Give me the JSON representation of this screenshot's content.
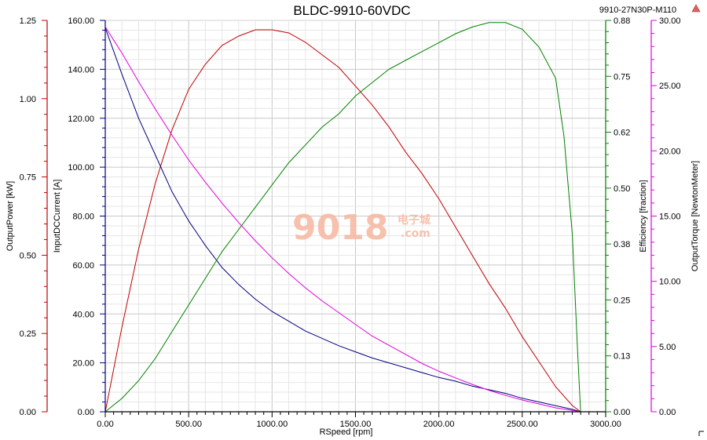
{
  "chart_data": {
    "type": "line",
    "title": "BLDC-9910-60VDC",
    "subtitle": "9910-27N30P-M110",
    "watermark": {
      "main": "9018",
      "cn": "电子城",
      "com": ".com"
    },
    "x_axis": {
      "label": "RSpeed [rpm]",
      "range": [
        0,
        3000
      ],
      "ticks": [
        "0.00",
        "500.00",
        "1000.00",
        "1500.00",
        "2000.00",
        "2500.00",
        "3000.00"
      ]
    },
    "y_axes": [
      {
        "id": "power",
        "label": "OutputPower [kW]",
        "color": "#c00000",
        "range": [
          0,
          1.25
        ],
        "ticks": [
          "0.00",
          "0.25",
          "0.50",
          "0.75",
          "1.00",
          "1.25"
        ]
      },
      {
        "id": "current",
        "label": "InputDCCurrent [A]",
        "color": "#000080",
        "range": [
          0,
          160
        ],
        "ticks": [
          "0.00",
          "20.00",
          "40.00",
          "60.00",
          "80.00",
          "100.00",
          "120.00",
          "140.00",
          "160.00"
        ]
      },
      {
        "id": "efficiency",
        "label": "Efficiency [fraction]",
        "color": "#008000",
        "range": [
          0,
          0.88
        ],
        "ticks": [
          "0.00",
          "0.13",
          "0.25",
          "0.38",
          "0.50",
          "0.62",
          "0.75",
          "0.88"
        ]
      },
      {
        "id": "torque",
        "label": "OutputTorque [NewtonMeter]",
        "color": "#e000e0",
        "range": [
          0,
          30
        ],
        "ticks": [
          "0.00",
          "5.00",
          "10.00",
          "15.00",
          "20.00",
          "25.00",
          "30.00"
        ]
      }
    ],
    "grid": true,
    "series": [
      {
        "axis": "power",
        "color": "#c00000",
        "points": [
          [
            0,
            0
          ],
          [
            100,
            0.27
          ],
          [
            200,
            0.52
          ],
          [
            300,
            0.73
          ],
          [
            400,
            0.9
          ],
          [
            500,
            1.03
          ],
          [
            600,
            1.11
          ],
          [
            700,
            1.17
          ],
          [
            800,
            1.2
          ],
          [
            900,
            1.22
          ],
          [
            1000,
            1.22
          ],
          [
            1100,
            1.21
          ],
          [
            1200,
            1.18
          ],
          [
            1300,
            1.14
          ],
          [
            1400,
            1.1
          ],
          [
            1500,
            1.04
          ],
          [
            1600,
            0.98
          ],
          [
            1700,
            0.91
          ],
          [
            1800,
            0.83
          ],
          [
            1900,
            0.76
          ],
          [
            2000,
            0.68
          ],
          [
            2100,
            0.59
          ],
          [
            2200,
            0.5
          ],
          [
            2300,
            0.41
          ],
          [
            2400,
            0.33
          ],
          [
            2500,
            0.24
          ],
          [
            2600,
            0.16
          ],
          [
            2700,
            0.08
          ],
          [
            2800,
            0.02
          ],
          [
            2850,
            0
          ]
        ]
      },
      {
        "axis": "current",
        "color": "#000080",
        "points": [
          [
            0,
            157
          ],
          [
            100,
            138
          ],
          [
            200,
            120
          ],
          [
            300,
            105
          ],
          [
            400,
            90
          ],
          [
            500,
            78
          ],
          [
            600,
            68
          ],
          [
            700,
            59
          ],
          [
            800,
            52
          ],
          [
            900,
            46
          ],
          [
            1000,
            41
          ],
          [
            1100,
            37
          ],
          [
            1200,
            33
          ],
          [
            1300,
            30
          ],
          [
            1400,
            27
          ],
          [
            1500,
            24.5
          ],
          [
            1600,
            22
          ],
          [
            1700,
            20
          ],
          [
            1800,
            18
          ],
          [
            1900,
            16
          ],
          [
            2000,
            14
          ],
          [
            2100,
            12.5
          ],
          [
            2200,
            10.5
          ],
          [
            2300,
            9
          ],
          [
            2400,
            7.5
          ],
          [
            2500,
            5.5
          ],
          [
            2600,
            4
          ],
          [
            2700,
            2.5
          ],
          [
            2800,
            1
          ],
          [
            2850,
            0
          ]
        ]
      },
      {
        "axis": "efficiency",
        "color": "#008000",
        "points": [
          [
            0,
            0
          ],
          [
            100,
            0.03
          ],
          [
            200,
            0.07
          ],
          [
            300,
            0.12
          ],
          [
            400,
            0.18
          ],
          [
            500,
            0.24
          ],
          [
            600,
            0.3
          ],
          [
            700,
            0.36
          ],
          [
            800,
            0.41
          ],
          [
            900,
            0.46
          ],
          [
            1000,
            0.51
          ],
          [
            1100,
            0.56
          ],
          [
            1200,
            0.6
          ],
          [
            1300,
            0.64
          ],
          [
            1400,
            0.67
          ],
          [
            1500,
            0.71
          ],
          [
            1600,
            0.74
          ],
          [
            1700,
            0.77
          ],
          [
            1800,
            0.79
          ],
          [
            1900,
            0.81
          ],
          [
            2000,
            0.83
          ],
          [
            2100,
            0.85
          ],
          [
            2200,
            0.865
          ],
          [
            2300,
            0.875
          ],
          [
            2400,
            0.875
          ],
          [
            2500,
            0.86
          ],
          [
            2600,
            0.82
          ],
          [
            2700,
            0.75
          ],
          [
            2750,
            0.62
          ],
          [
            2800,
            0.4
          ],
          [
            2830,
            0.15
          ],
          [
            2850,
            0
          ]
        ]
      },
      {
        "axis": "torque",
        "color": "#e000e0",
        "points": [
          [
            0,
            29.5
          ],
          [
            100,
            27.5
          ],
          [
            200,
            25.3
          ],
          [
            300,
            23.2
          ],
          [
            400,
            21.2
          ],
          [
            500,
            19.3
          ],
          [
            600,
            17.6
          ],
          [
            700,
            16.0
          ],
          [
            800,
            14.5
          ],
          [
            900,
            13.1
          ],
          [
            1000,
            11.8
          ],
          [
            1100,
            10.6
          ],
          [
            1200,
            9.5
          ],
          [
            1300,
            8.5
          ],
          [
            1400,
            7.6
          ],
          [
            1500,
            6.7
          ],
          [
            1600,
            5.8
          ],
          [
            1700,
            5.1
          ],
          [
            1800,
            4.4
          ],
          [
            1900,
            3.7
          ],
          [
            2000,
            3.1
          ],
          [
            2100,
            2.6
          ],
          [
            2200,
            2.1
          ],
          [
            2300,
            1.65
          ],
          [
            2400,
            1.25
          ],
          [
            2500,
            0.9
          ],
          [
            2600,
            0.6
          ],
          [
            2700,
            0.3
          ],
          [
            2800,
            0.1
          ],
          [
            2850,
            0
          ]
        ]
      }
    ]
  }
}
